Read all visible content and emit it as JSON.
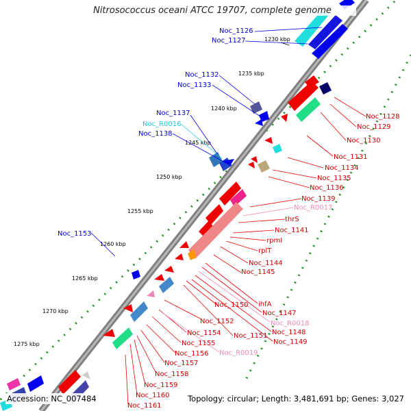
{
  "title": "Nitrosococcus oceani ATCC 19707, complete genome",
  "accession": "Accession: NC_007484",
  "topology_info": "Topology: circular; Length: 3,481,691 bp; Genes: 3,027",
  "colors": {
    "forward_gene": "#0000ee",
    "reverse_gene": "#ee0000",
    "rna_forward": "#22ccdd",
    "rna_reverse": "#ee88bb",
    "backbone": "#808080",
    "gc_dots": "#1a8f1a"
  },
  "kbp_ticks": [
    "1230 kbp",
    "1235 kbp",
    "1240 kbp",
    "1245 kbp",
    "1250 kbp",
    "1255 kbp",
    "1260 kbp",
    "1265 kbp",
    "1270 kbp",
    "1275 kbp"
  ],
  "gene_labels_left": [
    "Noc_1126",
    "Noc_1127",
    "Noc_1132",
    "Noc_1133",
    "Noc_1137",
    "Noc_R0016",
    "Noc_1138",
    "Noc_1153"
  ],
  "gene_labels_right": [
    "Noc_1128",
    "Noc_1129",
    "Noc_1130",
    "Noc_1131",
    "Noc_1134",
    "Noc_1135",
    "Noc_1136",
    "Noc_1139",
    "Noc_R0017",
    "thrS",
    "Noc_1141",
    "rpmI",
    "rplT",
    "Noc_1144",
    "Noc_1145",
    "Noc_1150",
    "ihfA",
    "Noc_1147",
    "Noc_R0018",
    "Noc_1152",
    "Noc_1148",
    "Noc_1151",
    "Noc_1154",
    "Noc_1149",
    "Noc_1155",
    "Noc_1156",
    "Noc_R0019",
    "Noc_1157",
    "Noc_1158",
    "Noc_1159",
    "Noc_1160",
    "Noc_1161"
  ]
}
